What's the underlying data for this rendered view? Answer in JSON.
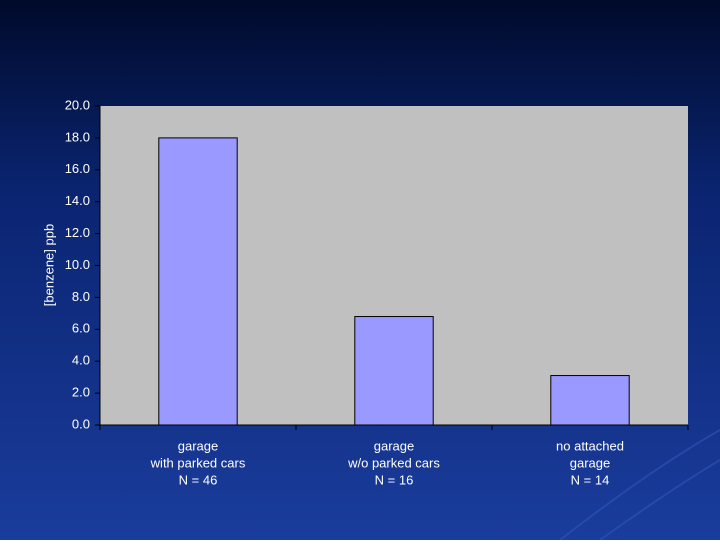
{
  "chart_data": {
    "type": "bar",
    "y_axis_label": "[benzene] ppb",
    "categories": [
      [
        "garage",
        "with parked cars",
        "N = 46"
      ],
      [
        "garage",
        "w/o parked cars",
        "N = 16"
      ],
      [
        "no attached",
        "garage",
        "N = 14"
      ]
    ],
    "values": [
      18.0,
      6.8,
      3.1
    ],
    "color": "#9999ff",
    "ylim": [
      0,
      20
    ],
    "yticks": [
      {
        "value": 0,
        "label": "0.0"
      },
      {
        "value": 2,
        "label": "2.0"
      },
      {
        "value": 4,
        "label": "4.0"
      },
      {
        "value": 6,
        "label": "6.0"
      },
      {
        "value": 8,
        "label": "8.0"
      },
      {
        "value": 10,
        "label": "10.0"
      },
      {
        "value": 12,
        "label": "12.0"
      },
      {
        "value": 14,
        "label": "14.0"
      },
      {
        "value": 16,
        "label": "16.0"
      },
      {
        "value": 18,
        "label": "18.0"
      },
      {
        "value": 20,
        "label": "20.0"
      }
    ]
  }
}
